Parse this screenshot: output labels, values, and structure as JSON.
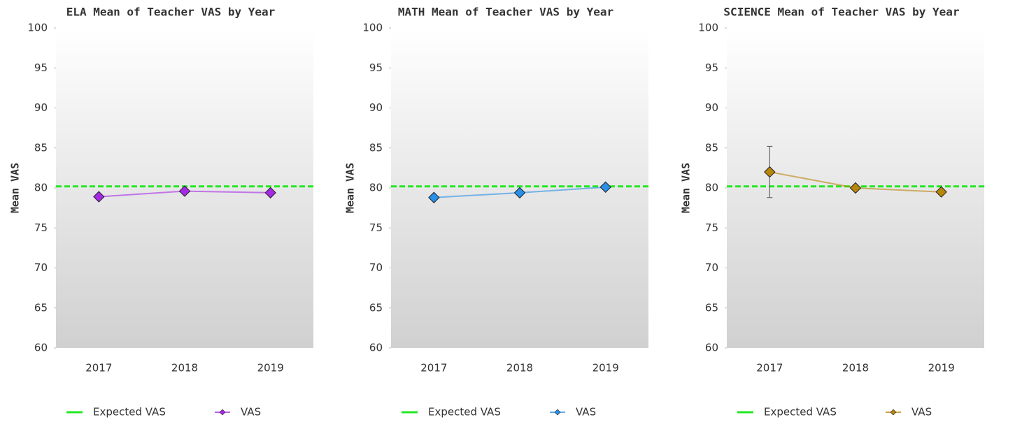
{
  "chart_data": [
    {
      "type": "line",
      "title": "ELA Mean of Teacher VAS by Year",
      "y_label": "Mean VAS",
      "categories": [
        "2017",
        "2018",
        "2019"
      ],
      "series": [
        {
          "name": "VAS",
          "color": "#a52ae6",
          "values": [
            78.9,
            79.6,
            79.4
          ]
        }
      ],
      "reference_line": {
        "name": "Expected VAS",
        "color": "#22e822",
        "value": 80.2
      },
      "ylim": [
        60,
        100
      ],
      "yticks": [
        60,
        65,
        70,
        75,
        80,
        85,
        90,
        95,
        100
      ]
    },
    {
      "type": "line",
      "title": "MATH Mean of Teacher VAS by Year",
      "y_label": "Mean VAS",
      "categories": [
        "2017",
        "2018",
        "2019"
      ],
      "series": [
        {
          "name": "VAS",
          "color": "#2a8fe8",
          "values": [
            78.8,
            79.4,
            80.1
          ]
        }
      ],
      "reference_line": {
        "name": "Expected VAS",
        "color": "#22e822",
        "value": 80.2
      },
      "ylim": [
        60,
        100
      ],
      "yticks": [
        60,
        65,
        70,
        75,
        80,
        85,
        90,
        95,
        100
      ]
    },
    {
      "type": "line",
      "title": "SCIENCE Mean of Teacher VAS by Year",
      "y_label": "Mean VAS",
      "categories": [
        "2017",
        "2018",
        "2019"
      ],
      "series": [
        {
          "name": "VAS",
          "color": "#b8860b",
          "values": [
            82.0,
            80.0,
            79.5
          ],
          "errors": [
            3.2,
            null,
            null
          ]
        }
      ],
      "reference_line": {
        "name": "Expected VAS",
        "color": "#22e822",
        "value": 80.2
      },
      "ylim": [
        60,
        100
      ],
      "yticks": [
        60,
        65,
        70,
        75,
        80,
        85,
        90,
        95,
        100
      ]
    }
  ]
}
